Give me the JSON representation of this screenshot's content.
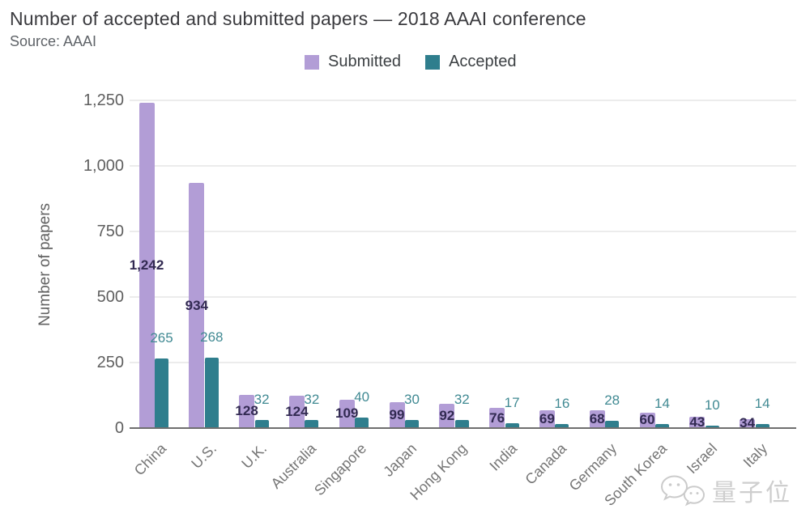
{
  "header": {
    "title": "Number of accepted and submitted papers — 2018 AAAI conference",
    "source": "Source: AAAI"
  },
  "legend": {
    "items": [
      "Submitted",
      "Accepted"
    ]
  },
  "axes": {
    "y_label": "Number of papers",
    "y_tick_labels": [
      "0",
      "250",
      "500",
      "750",
      "1,000",
      "1,250"
    ]
  },
  "watermark": {
    "icon": "wechat-logo-icon",
    "text": "量子位"
  },
  "chart_data": {
    "type": "bar",
    "title": "Number of accepted and submitted papers — 2018 AAAI conference",
    "source": "AAAI",
    "xlabel": "",
    "ylabel": "Number of papers",
    "categories": [
      "China",
      "U.S.",
      "U.K.",
      "Australia",
      "Singapore",
      "Japan",
      "Hong Kong",
      "India",
      "Canada",
      "Germany",
      "South Korea",
      "Israel",
      "Italy"
    ],
    "series": [
      {
        "name": "Submitted",
        "color": "#b29dd6",
        "label_color": "#322a52",
        "values": [
          1242,
          934,
          128,
          124,
          109,
          99,
          92,
          76,
          69,
          68,
          60,
          43,
          34
        ]
      },
      {
        "name": "Accepted",
        "color": "#2f7e8d",
        "label_color": "#418a93",
        "values": [
          265,
          268,
          32,
          32,
          40,
          30,
          32,
          17,
          16,
          28,
          14,
          10,
          14
        ]
      }
    ],
    "yticks": [
      0,
      250,
      500,
      750,
      1000,
      1250
    ],
    "ylim": [
      0,
      1250
    ],
    "grid": true,
    "legend_position": "top",
    "gridline_color": "#ececec",
    "baseline_color": "#6f6f6f"
  }
}
